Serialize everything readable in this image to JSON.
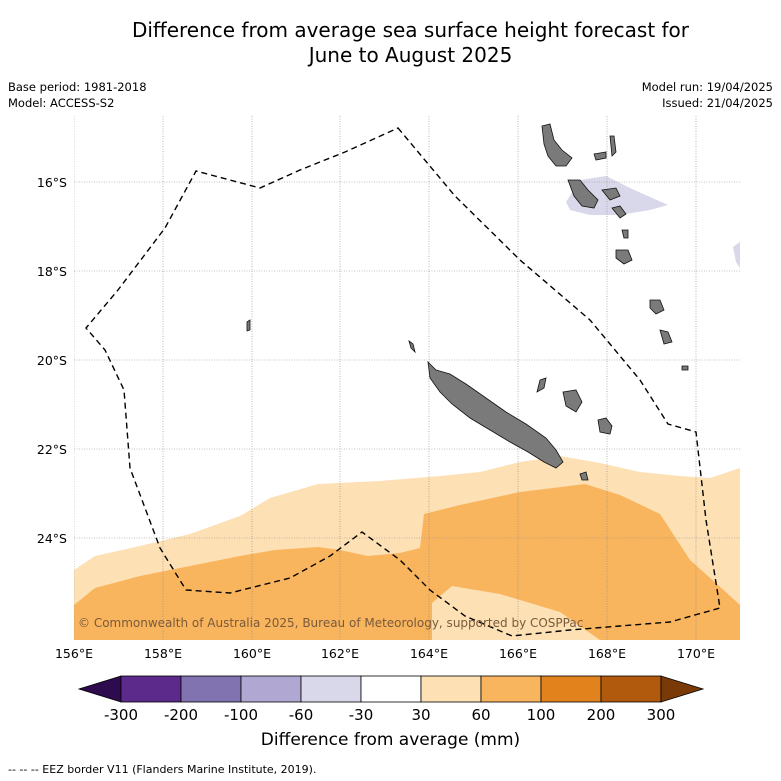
{
  "title_line1": "Difference from average sea surface height forecast for",
  "title_line2": "June to August 2025",
  "meta_left": [
    "Base period: 1981-2018",
    "Model: ACCESS-S2"
  ],
  "meta_right": [
    "Model run: 19/04/2025",
    "Issued: 21/04/2025"
  ],
  "lat_labels": [
    "16°S",
    "18°S",
    "20°S",
    "22°S",
    "24°S"
  ],
  "lon_labels": [
    "156°E",
    "158°E",
    "160°E",
    "162°E",
    "164°E",
    "166°E",
    "168°E",
    "170°E"
  ],
  "copyright": "© Commonwealth of Australia 2025, Bureau of Meteorology, supported by COSPPac",
  "colorbar": {
    "ticks": [
      "-300",
      "-200",
      "-100",
      "-60",
      "-30",
      "30",
      "60",
      "100",
      "200",
      "300"
    ],
    "colors": [
      "#2d0b4e",
      "#5b2a8a",
      "#8173b0",
      "#b0a8d2",
      "#d8d8ea",
      "#ffffff",
      "#fde0b4",
      "#f9b45e",
      "#e1821c",
      "#b15a0e",
      "#7a3a08"
    ],
    "title": "Difference from average (mm)"
  },
  "footer": "--  --  -- EEZ border V11 (Flanders Marine Institute, 2019).",
  "legend_icon": "dashed-line-icon"
}
